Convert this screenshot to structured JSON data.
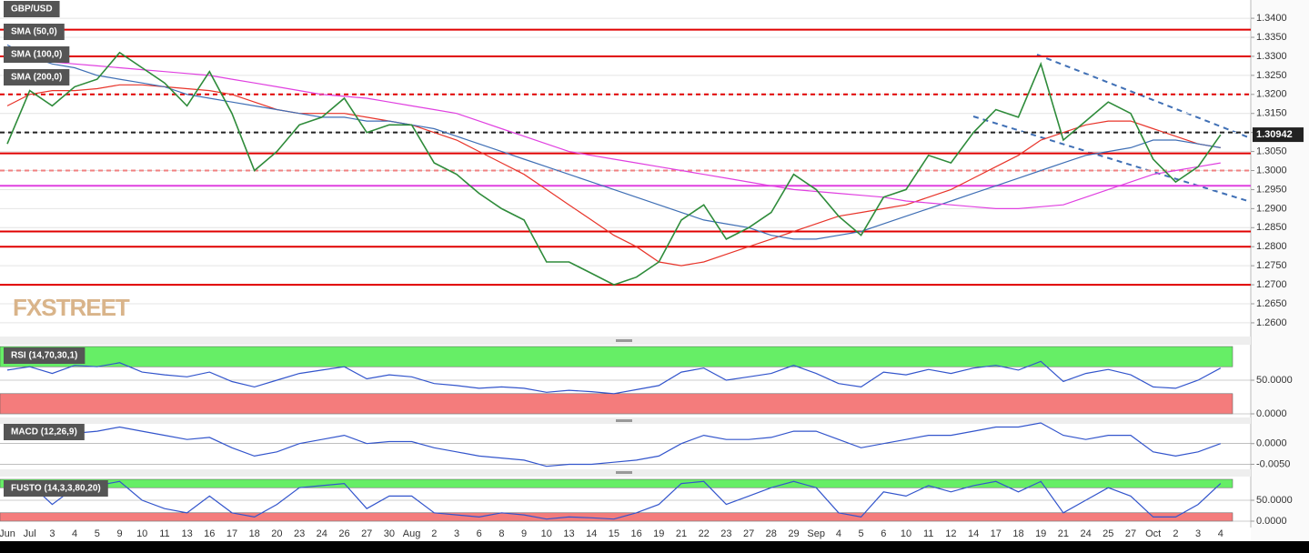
{
  "chart_data": [
    {
      "type": "line",
      "title": "GBP/USD",
      "categories": [
        "Jun",
        "Jul",
        "3",
        "4",
        "5",
        "9",
        "10",
        "11",
        "13",
        "16",
        "17",
        "18",
        "20",
        "23",
        "24",
        "26",
        "27",
        "30",
        "Aug",
        "2",
        "3",
        "6",
        "8",
        "9",
        "10",
        "13",
        "14",
        "15",
        "16",
        "19",
        "21",
        "22",
        "23",
        "27",
        "28",
        "29",
        "Sep",
        "4",
        "5",
        "6",
        "10",
        "11",
        "12",
        "14",
        "17",
        "18",
        "19",
        "21",
        "24",
        "25",
        "27",
        "Oct",
        "2",
        "3",
        "4"
      ],
      "series": [
        {
          "name": "SMA (50,0)",
          "color": "#e8342a",
          "values": [
            1.317,
            1.32,
            1.321,
            1.321,
            1.3215,
            1.3225,
            1.3225,
            1.322,
            1.3215,
            1.321,
            1.32,
            1.318,
            1.316,
            1.315,
            1.315,
            1.315,
            1.314,
            1.313,
            1.312,
            1.31,
            1.308,
            1.305,
            1.302,
            1.299,
            1.295,
            1.291,
            1.287,
            1.283,
            1.28,
            1.276,
            1.275,
            1.276,
            1.278,
            1.28,
            1.282,
            1.284,
            1.286,
            1.288,
            1.289,
            1.29,
            1.291,
            1.293,
            1.295,
            1.298,
            1.301,
            1.304,
            1.308,
            1.31,
            1.312,
            1.313,
            1.313,
            1.311,
            1.309,
            1.307,
            1.306
          ]
        },
        {
          "name": "SMA (100,0)",
          "color": "#3f6fb5",
          "values": [
            1.333,
            1.33,
            1.328,
            1.327,
            1.325,
            1.324,
            1.323,
            1.322,
            1.32,
            1.319,
            1.318,
            1.317,
            1.316,
            1.315,
            1.314,
            1.314,
            1.313,
            1.313,
            1.312,
            1.311,
            1.309,
            1.307,
            1.305,
            1.303,
            1.301,
            1.299,
            1.297,
            1.295,
            1.293,
            1.291,
            1.289,
            1.287,
            1.286,
            1.285,
            1.283,
            1.282,
            1.282,
            1.283,
            1.284,
            1.286,
            1.288,
            1.29,
            1.292,
            1.294,
            1.296,
            1.298,
            1.3,
            1.302,
            1.304,
            1.305,
            1.306,
            1.308,
            1.308,
            1.307,
            1.306
          ]
        },
        {
          "name": "SMA (200,0)",
          "color": "#e040e0",
          "values": [
            1.33,
            1.329,
            1.3285,
            1.328,
            1.3275,
            1.327,
            1.3265,
            1.326,
            1.3255,
            1.325,
            1.324,
            1.323,
            1.322,
            1.321,
            1.32,
            1.3195,
            1.319,
            1.318,
            1.317,
            1.316,
            1.315,
            1.313,
            1.311,
            1.309,
            1.307,
            1.305,
            1.304,
            1.303,
            1.302,
            1.301,
            1.3,
            1.299,
            1.298,
            1.297,
            1.296,
            1.295,
            1.2945,
            1.294,
            1.2935,
            1.293,
            1.292,
            1.2915,
            1.291,
            1.2905,
            1.29,
            1.29,
            1.2905,
            1.291,
            1.293,
            1.295,
            1.297,
            1.299,
            1.3,
            1.301,
            1.302
          ]
        },
        {
          "color": "#2e8b3a",
          "values": [
            1.307,
            1.321,
            1.317,
            1.322,
            1.324,
            1.331,
            1.327,
            1.323,
            1.317,
            1.326,
            1.315,
            1.3,
            1.305,
            1.312,
            1.314,
            1.319,
            1.31,
            1.312,
            1.312,
            1.302,
            1.299,
            1.294,
            1.29,
            1.287,
            1.276,
            1.276,
            1.273,
            1.27,
            1.272,
            1.276,
            1.287,
            1.291,
            1.282,
            1.285,
            1.289,
            1.299,
            1.295,
            1.288,
            1.283,
            1.293,
            1.295,
            1.304,
            1.302,
            1.31,
            1.316,
            1.314,
            1.328,
            1.308,
            1.313,
            1.318,
            1.315,
            1.303,
            1.297,
            1.301,
            1.3094
          ]
        }
      ],
      "levels": [
        {
          "value": 1.337,
          "color": "#e00000",
          "style": "solid"
        },
        {
          "value": 1.33,
          "color": "#e00000",
          "style": "solid"
        },
        {
          "value": 1.32,
          "color": "#e00000",
          "style": "dashed"
        },
        {
          "value": 1.31,
          "color": "#222222",
          "style": "dashed"
        },
        {
          "value": 1.3045,
          "color": "#e00000",
          "style": "solid"
        },
        {
          "value": 1.3,
          "color": "#f08080",
          "style": "dashed"
        },
        {
          "value": 1.296,
          "color": "#e040e0",
          "style": "solid"
        },
        {
          "value": 1.284,
          "color": "#e00000",
          "style": "solid"
        },
        {
          "value": 1.28,
          "color": "#e00000",
          "style": "solid"
        },
        {
          "value": 1.27,
          "color": "#e00000",
          "style": "solid"
        }
      ],
      "last_price": 1.30942,
      "watermark": "FXSTREET",
      "ylim": [
        1.2564,
        1.3448
      ],
      "yticks": [
        {
          "value": 1.26,
          "label": "1.2600"
        },
        {
          "value": 1.265,
          "label": "1.2650"
        },
        {
          "value": 1.27,
          "label": "1.2700"
        },
        {
          "value": 1.275,
          "label": "1.2750"
        },
        {
          "value": 1.28,
          "label": "1.2800"
        },
        {
          "value": 1.285,
          "label": "1.2850"
        },
        {
          "value": 1.29,
          "label": "1.2900"
        },
        {
          "value": 1.295,
          "label": "1.2950"
        },
        {
          "value": 1.3,
          "label": "1.3000"
        },
        {
          "value": 1.305,
          "label": "1.3050"
        },
        {
          "value": 1.31,
          "label": "1.3100"
        },
        {
          "value": 1.315,
          "label": "1.3150"
        },
        {
          "value": 1.32,
          "label": "1.3200"
        },
        {
          "value": 1.325,
          "label": "1.3250"
        },
        {
          "value": 1.33,
          "label": "1.3300"
        },
        {
          "value": 1.335,
          "label": "1.3350"
        },
        {
          "value": 1.34,
          "label": "1.3400"
        }
      ],
      "grid": true
    },
    {
      "type": "line",
      "title": "RSI (14,70,30,1)",
      "series": [
        {
          "color": "#3355cc",
          "values": [
            65,
            70,
            60,
            72,
            70,
            76,
            62,
            58,
            55,
            62,
            48,
            40,
            50,
            60,
            65,
            70,
            52,
            58,
            55,
            45,
            42,
            38,
            40,
            38,
            32,
            35,
            33,
            30,
            36,
            42,
            62,
            68,
            50,
            55,
            60,
            72,
            60,
            45,
            40,
            62,
            58,
            66,
            60,
            68,
            72,
            65,
            78,
            48,
            60,
            66,
            58,
            40,
            38,
            50,
            68
          ]
        }
      ],
      "bands": [
        {
          "from": 70,
          "to": 100,
          "color": "#66ee66"
        },
        {
          "from": 0,
          "to": 30,
          "color": "#f47c7c"
        }
      ],
      "ylim": [
        0,
        100
      ],
      "yticks": [
        {
          "value": 0,
          "label": "0.0000"
        },
        {
          "value": 50,
          "label": "50.0000"
        }
      ]
    },
    {
      "type": "line",
      "title": "MACD (12,26,9)",
      "series": [
        {
          "color": "#3355cc",
          "values": [
            0.0015,
            0.0025,
            0.002,
            0.0025,
            0.003,
            0.004,
            0.003,
            0.002,
            0.001,
            0.0015,
            -0.001,
            -0.003,
            -0.002,
            0,
            0.001,
            0.002,
            0,
            0.0005,
            0.0005,
            -0.001,
            -0.002,
            -0.003,
            -0.0035,
            -0.004,
            -0.0055,
            -0.005,
            -0.005,
            -0.0045,
            -0.004,
            -0.003,
            0,
            0.002,
            0.001,
            0.001,
            0.0015,
            0.003,
            0.003,
            0.001,
            -0.001,
            0,
            0.001,
            0.002,
            0.002,
            0.003,
            0.004,
            0.004,
            0.005,
            0.002,
            0.001,
            0.002,
            0.002,
            -0.002,
            -0.003,
            -0.002,
            0
          ]
        }
      ],
      "ylim": [
        -0.006,
        0.005
      ],
      "yticks": [
        {
          "value": -0.005,
          "label": "-0.0050"
        },
        {
          "value": 0,
          "label": "0.0000"
        }
      ]
    },
    {
      "type": "line",
      "title": "FUSTO (14,3,3,80,20)",
      "series": [
        {
          "color": "#3355cc",
          "values": [
            60,
            90,
            40,
            80,
            85,
            95,
            50,
            30,
            20,
            60,
            20,
            10,
            40,
            80,
            85,
            90,
            30,
            60,
            60,
            20,
            15,
            10,
            20,
            15,
            5,
            10,
            8,
            5,
            20,
            40,
            90,
            95,
            40,
            60,
            80,
            95,
            80,
            20,
            10,
            70,
            60,
            85,
            70,
            85,
            95,
            70,
            95,
            20,
            50,
            80,
            60,
            10,
            10,
            40,
            90
          ]
        }
      ],
      "bands": [
        {
          "from": 80,
          "to": 100,
          "color": "#66ee66"
        },
        {
          "from": 0,
          "to": 20,
          "color": "#f47c7c"
        }
      ],
      "ylim": [
        0,
        100
      ],
      "yticks": [
        {
          "value": 0,
          "label": "0.0000"
        },
        {
          "value": 50,
          "label": "50.0000"
        }
      ]
    }
  ]
}
